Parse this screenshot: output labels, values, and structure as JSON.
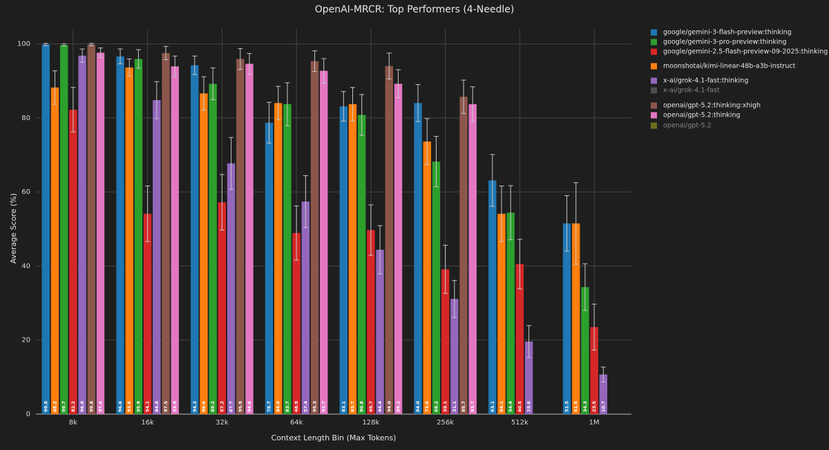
{
  "chart_data": {
    "type": "bar",
    "title": "OpenAI-MRCR: Top Performers (4-Needle)",
    "x_label": "Context Length Bin (Max Tokens)",
    "y_label": "Average Score (%)",
    "categories": [
      "8k",
      "16k",
      "32k",
      "64k",
      "128k",
      "256k",
      "512k",
      "1M"
    ],
    "ylim": [
      0,
      104
    ],
    "yticks": [
      0,
      20,
      40,
      60,
      80,
      100
    ],
    "grid": true,
    "legend": "outside-right",
    "series": [
      {
        "name": "google/gemini-3-flash-preview:thinking",
        "color": "#1f77b4",
        "values": [
          99.8,
          96.6,
          94.2,
          78.7,
          83.1,
          84.0,
          63.1,
          51.5
        ],
        "value_labels": [
          "99.8",
          "96.6",
          "94.2",
          "78.7",
          "83.1",
          "84.0",
          "63.1",
          "51.5"
        ],
        "errors": [
          0.3,
          2,
          2.5,
          5.5,
          4,
          5,
          7,
          7.5
        ]
      },
      {
        "name": "moonshotai/kimi-linear-48b-a3b-instruct",
        "color": "#ff7f0e",
        "values": [
          88.2,
          93.6,
          86.6,
          84.0,
          83.7,
          73.6,
          54.1,
          51.5
        ],
        "value_labels": [
          "88.2",
          "93.6",
          "86.6",
          "84.0",
          "83.7",
          "73.6",
          "54.1",
          "51.5"
        ],
        "errors": [
          4.5,
          2.3,
          4.5,
          4.5,
          4.5,
          6.2,
          7.5,
          11
        ]
      },
      {
        "name": "google/gemini-3-pro-preview:thinking",
        "color": "#2ca02c",
        "values": [
          99.7,
          95.9,
          89.2,
          83.7,
          80.8,
          68.2,
          54.4,
          34.3
        ],
        "value_labels": [
          "99.7",
          "95.9",
          "89.2",
          "83.7",
          "80.8",
          "68.2",
          "54.4",
          "34.3"
        ],
        "errors": [
          0.3,
          2.5,
          4.3,
          5.8,
          5.5,
          6.8,
          7.3,
          6.3
        ]
      },
      {
        "name": "google/gemini-2.5-flash-preview-09-2025:thinking",
        "color": "#d62728",
        "values": [
          82.2,
          54.1,
          57.2,
          48.9,
          49.7,
          39.1,
          40.5,
          23.5
        ],
        "value_labels": [
          "82.2",
          "54.1",
          "57.2",
          "48.9",
          "49.7",
          "39.1",
          "40.5",
          "23.5"
        ],
        "errors": [
          6,
          7.5,
          7.5,
          7.3,
          6.8,
          6.5,
          6.7,
          6.2
        ]
      },
      {
        "name": "x-ai/grok-4.1-fast:thinking",
        "color": "#9467bd",
        "values": [
          96.8,
          84.8,
          67.7,
          57.4,
          44.4,
          31.1,
          19.6,
          10.7
        ],
        "value_labels": [
          "96.8",
          "84.8",
          "67.7",
          "57.4",
          "44.4",
          "31.1",
          "19.6",
          "10.7"
        ],
        "errors": [
          1.8,
          5,
          7,
          7,
          6.5,
          5,
          4.3,
          2
        ]
      },
      {
        "name": "openai/gpt-5.2:thinking:xhigh",
        "color": "#8c564b",
        "values": [
          99.8,
          97.5,
          95.9,
          95.3,
          94.0,
          85.7,
          null,
          null
        ],
        "value_labels": [
          "99.8",
          "97.5",
          "95.9",
          "95.3",
          "94.0",
          "85.7",
          null,
          null
        ],
        "errors": [
          0.3,
          1.8,
          2.8,
          2.8,
          3.5,
          4.5,
          null,
          null
        ]
      },
      {
        "name": "openai/gpt-5.2:thinking",
        "color": "#e377c2",
        "values": [
          97.6,
          93.9,
          94.6,
          92.7,
          89.2,
          83.7,
          null,
          null
        ],
        "value_labels": [
          "97.6",
          "93.9",
          "94.6",
          "92.7",
          "89.2",
          "83.7",
          null,
          null
        ],
        "errors": [
          1.3,
          2.8,
          2.8,
          3.3,
          3.8,
          4.7,
          null,
          null
        ]
      },
      {
        "name": "x-ai/grok-4.1-fast",
        "color": "#7f7f7f",
        "visible": "legendonly",
        "values": [
          null,
          null,
          null,
          null,
          null,
          null,
          null,
          null
        ]
      },
      {
        "name": "openai/gpt-5.2",
        "color": "#bcbd22",
        "visible": "legendonly",
        "values": [
          null,
          null,
          null,
          null,
          null,
          null,
          null,
          null
        ]
      }
    ],
    "legend_order": [
      0,
      2,
      3,
      1,
      4,
      7,
      5,
      6,
      8
    ]
  }
}
